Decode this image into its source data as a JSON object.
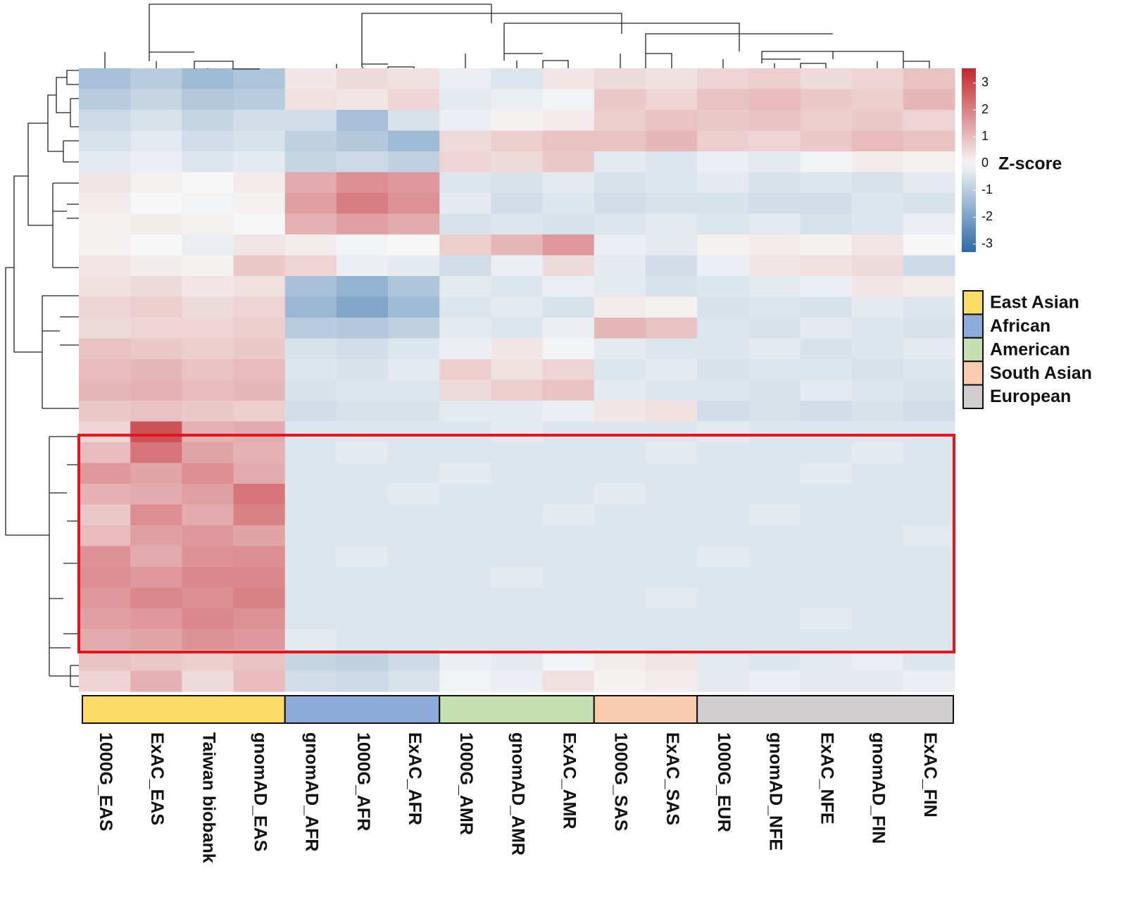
{
  "chart_data": {
    "type": "heatmap",
    "columns": [
      "1000G_EAS",
      "ExAC_EAS",
      "Taiwan biobank",
      "gnomAD_EAS",
      "gnomAD_AFR",
      "1000G_AFR",
      "ExAC_AFR",
      "1000G_AMR",
      "gnomAD_AMR",
      "ExAC_AMR",
      "1000G_SAS",
      "ExAC_SAS",
      "1000G_EUR",
      "gnomAD_NFE",
      "ExAC_NFE",
      "gnomAD_FIN",
      "ExAC_FIN"
    ],
    "groups": [
      {
        "name": "East Asian",
        "color": "#fdd966",
        "columns": [
          0,
          1,
          2,
          3
        ]
      },
      {
        "name": "African",
        "color": "#8eaadb",
        "columns": [
          4,
          5,
          6
        ]
      },
      {
        "name": "American",
        "color": "#c5e0b3",
        "columns": [
          7,
          8,
          9
        ]
      },
      {
        "name": "South Asian",
        "color": "#f8cbad",
        "columns": [
          10,
          11
        ]
      },
      {
        "name": "European",
        "color": "#d0cece",
        "columns": [
          12,
          13,
          14,
          15,
          16
        ]
      }
    ],
    "colorbar_label": "Z-score",
    "zlim": [
      -3.3,
      3.55
    ],
    "zticks": [
      -3,
      -2,
      -1,
      0,
      1,
      2,
      3
    ],
    "colorscale": [
      "#2b6aa8",
      "#f7f7f7",
      "#c1272d"
    ],
    "values": [
      [
        -1.3,
        -1.0,
        -1.4,
        -1.2,
        0.3,
        0.5,
        0.4,
        -0.2,
        -0.4,
        0.3,
        0.5,
        0.4,
        0.6,
        0.7,
        0.5,
        0.6,
        0.9
      ],
      [
        -1.0,
        -0.8,
        -1.1,
        -1.0,
        0.4,
        0.3,
        0.6,
        -0.3,
        -0.2,
        -0.1,
        0.8,
        0.6,
        0.9,
        1.0,
        0.8,
        0.7,
        1.1
      ],
      [
        -0.7,
        -0.5,
        -0.8,
        -0.6,
        -0.6,
        -1.3,
        -0.5,
        -0.2,
        0.1,
        0.2,
        0.7,
        0.9,
        0.8,
        0.9,
        0.7,
        0.8,
        0.6
      ],
      [
        -0.5,
        -0.3,
        -0.6,
        -0.5,
        -0.9,
        -1.1,
        -1.4,
        0.5,
        0.7,
        0.9,
        0.9,
        1.1,
        0.7,
        0.6,
        0.8,
        1.0,
        0.9
      ],
      [
        -0.3,
        -0.2,
        -0.4,
        -0.3,
        -0.8,
        -0.7,
        -0.9,
        0.6,
        0.5,
        0.8,
        -0.3,
        -0.4,
        -0.2,
        -0.3,
        -0.1,
        0.2,
        0.1
      ],
      [
        0.3,
        0.1,
        0.0,
        0.2,
        1.3,
        1.8,
        1.6,
        -0.4,
        -0.5,
        -0.3,
        -0.5,
        -0.4,
        -0.3,
        -0.5,
        -0.4,
        -0.5,
        -0.3
      ],
      [
        0.2,
        0.0,
        -0.1,
        0.1,
        1.5,
        2.1,
        1.7,
        -0.3,
        -0.6,
        -0.4,
        -0.6,
        -0.5,
        -0.5,
        -0.6,
        -0.6,
        -0.4,
        -0.5
      ],
      [
        0.1,
        0.2,
        0.1,
        0.0,
        1.2,
        1.5,
        1.3,
        -0.5,
        -0.4,
        -0.5,
        -0.4,
        -0.3,
        -0.4,
        -0.3,
        -0.5,
        -0.4,
        -0.2
      ],
      [
        0.1,
        0.0,
        -0.2,
        0.3,
        0.2,
        -0.1,
        0.0,
        0.7,
        1.1,
        1.6,
        -0.2,
        -0.3,
        0.1,
        0.2,
        0.1,
        0.3,
        0.0
      ],
      [
        0.3,
        0.2,
        0.1,
        0.8,
        0.6,
        -0.2,
        -0.3,
        -0.6,
        -0.2,
        0.5,
        -0.3,
        -0.6,
        -0.2,
        0.3,
        0.4,
        0.5,
        -0.7
      ],
      [
        0.4,
        0.5,
        0.3,
        0.4,
        -1.3,
        -1.6,
        -1.2,
        -0.3,
        -0.4,
        -0.2,
        -0.3,
        -0.5,
        -0.4,
        -0.3,
        -0.2,
        0.3,
        0.2
      ],
      [
        0.6,
        0.7,
        0.5,
        0.6,
        -1.5,
        -1.9,
        -1.4,
        -0.4,
        -0.3,
        -0.5,
        0.2,
        0.1,
        -0.5,
        -0.4,
        -0.5,
        -0.3,
        -0.4
      ],
      [
        0.5,
        0.6,
        0.6,
        0.7,
        -1.0,
        -1.1,
        -0.9,
        -0.3,
        -0.4,
        -0.2,
        1.1,
        0.9,
        -0.4,
        -0.5,
        -0.3,
        -0.4,
        -0.5
      ],
      [
        0.9,
        0.8,
        0.7,
        0.8,
        -0.5,
        -0.6,
        -0.4,
        -0.2,
        0.3,
        -0.1,
        -0.3,
        -0.4,
        -0.4,
        -0.3,
        -0.5,
        -0.4,
        -0.3
      ],
      [
        1.0,
        1.1,
        0.9,
        1.0,
        -0.4,
        -0.5,
        -0.3,
        0.7,
        0.4,
        0.6,
        -0.4,
        -0.3,
        -0.5,
        -0.4,
        -0.4,
        -0.5,
        -0.4
      ],
      [
        1.1,
        1.2,
        1.0,
        1.1,
        -0.5,
        -0.4,
        -0.4,
        0.5,
        0.7,
        0.9,
        -0.3,
        -0.4,
        -0.4,
        -0.5,
        -0.3,
        -0.4,
        -0.5
      ],
      [
        0.8,
        0.9,
        0.8,
        0.7,
        -0.6,
        -0.5,
        -0.5,
        -0.3,
        -0.3,
        -0.2,
        0.3,
        0.4,
        -0.6,
        -0.5,
        -0.6,
        -0.5,
        -0.6
      ],
      [
        0.6,
        2.8,
        1.2,
        1.3,
        -0.4,
        -0.4,
        -0.4,
        -0.4,
        -0.3,
        -0.4,
        -0.4,
        -0.4,
        -0.3,
        -0.4,
        -0.4,
        -0.4,
        -0.4
      ],
      [
        1.0,
        2.2,
        1.4,
        1.2,
        -0.4,
        -0.3,
        -0.4,
        -0.4,
        -0.4,
        -0.4,
        -0.4,
        -0.3,
        -0.4,
        -0.4,
        -0.4,
        -0.3,
        -0.4
      ],
      [
        1.6,
        1.4,
        1.8,
        1.3,
        -0.4,
        -0.4,
        -0.4,
        -0.3,
        -0.4,
        -0.4,
        -0.4,
        -0.4,
        -0.4,
        -0.4,
        -0.3,
        -0.4,
        -0.4
      ],
      [
        1.2,
        1.3,
        1.5,
        2.2,
        -0.4,
        -0.4,
        -0.3,
        -0.4,
        -0.4,
        -0.4,
        -0.3,
        -0.4,
        -0.4,
        -0.4,
        -0.4,
        -0.4,
        -0.4
      ],
      [
        0.8,
        1.8,
        1.3,
        2.0,
        -0.4,
        -0.4,
        -0.4,
        -0.4,
        -0.4,
        -0.3,
        -0.4,
        -0.4,
        -0.4,
        -0.3,
        -0.4,
        -0.4,
        -0.4
      ],
      [
        1.0,
        1.5,
        1.6,
        1.4,
        -0.4,
        -0.4,
        -0.4,
        -0.4,
        -0.4,
        -0.4,
        -0.4,
        -0.4,
        -0.4,
        -0.4,
        -0.4,
        -0.4,
        -0.3
      ],
      [
        1.7,
        1.3,
        1.7,
        1.8,
        -0.4,
        -0.3,
        -0.4,
        -0.4,
        -0.4,
        -0.4,
        -0.4,
        -0.4,
        -0.3,
        -0.4,
        -0.4,
        -0.4,
        -0.4
      ],
      [
        1.8,
        1.6,
        1.9,
        1.9,
        -0.4,
        -0.4,
        -0.4,
        -0.4,
        -0.3,
        -0.4,
        -0.4,
        -0.4,
        -0.4,
        -0.4,
        -0.4,
        -0.4,
        -0.4
      ],
      [
        1.6,
        1.9,
        1.8,
        2.0,
        -0.4,
        -0.4,
        -0.4,
        -0.4,
        -0.4,
        -0.4,
        -0.4,
        -0.3,
        -0.4,
        -0.4,
        -0.4,
        -0.4,
        -0.4
      ],
      [
        1.5,
        1.6,
        1.9,
        1.7,
        -0.4,
        -0.4,
        -0.4,
        -0.4,
        -0.4,
        -0.4,
        -0.4,
        -0.4,
        -0.4,
        -0.4,
        -0.3,
        -0.4,
        -0.4
      ],
      [
        1.3,
        1.4,
        1.7,
        1.6,
        -0.3,
        -0.4,
        -0.4,
        -0.4,
        -0.4,
        -0.4,
        -0.4,
        -0.4,
        -0.4,
        -0.4,
        -0.4,
        -0.4,
        -0.4
      ],
      [
        0.9,
        0.8,
        0.7,
        0.9,
        -0.8,
        -0.9,
        -0.7,
        -0.2,
        -0.3,
        -0.1,
        0.2,
        0.3,
        -0.3,
        -0.4,
        -0.3,
        -0.2,
        -0.4
      ],
      [
        0.6,
        1.2,
        0.5,
        1.0,
        -0.6,
        -0.7,
        -0.5,
        -0.1,
        -0.2,
        0.4,
        0.1,
        0.2,
        -0.3,
        -0.2,
        -0.3,
        -0.3,
        -0.2
      ]
    ]
  }
}
